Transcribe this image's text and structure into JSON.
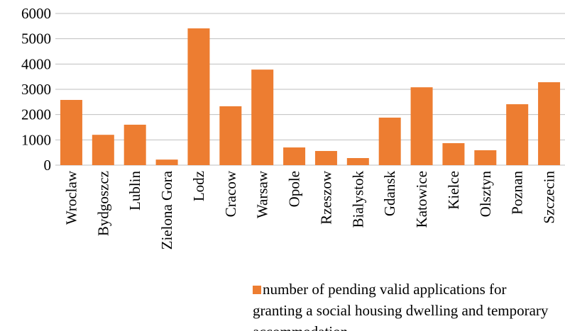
{
  "chart_data": {
    "type": "bar",
    "categories": [
      "Wroclaw",
      "Bydgoszcz",
      "Lublin",
      "Zielona Gora",
      "Lodz",
      "Cracow",
      "Warsaw",
      "Opole",
      "Rzeszow",
      "Bialystok",
      "Gdansk",
      "Katowice",
      "Kielce",
      "Olsztyn",
      "Poznan",
      "Szczecin"
    ],
    "series": [
      {
        "name": "number of pending valid applications for granting a social housing dwelling and temporary accommodation",
        "color": "#ed7d31",
        "values": [
          2580,
          1200,
          1600,
          220,
          5410,
          2330,
          3780,
          700,
          560,
          280,
          1880,
          3080,
          870,
          590,
          2410,
          3280
        ]
      }
    ],
    "ylim": [
      0,
      6000
    ],
    "yticks": [
      0,
      1000,
      2000,
      3000,
      4000,
      5000,
      6000
    ],
    "grid": true,
    "legend": "bottom"
  }
}
